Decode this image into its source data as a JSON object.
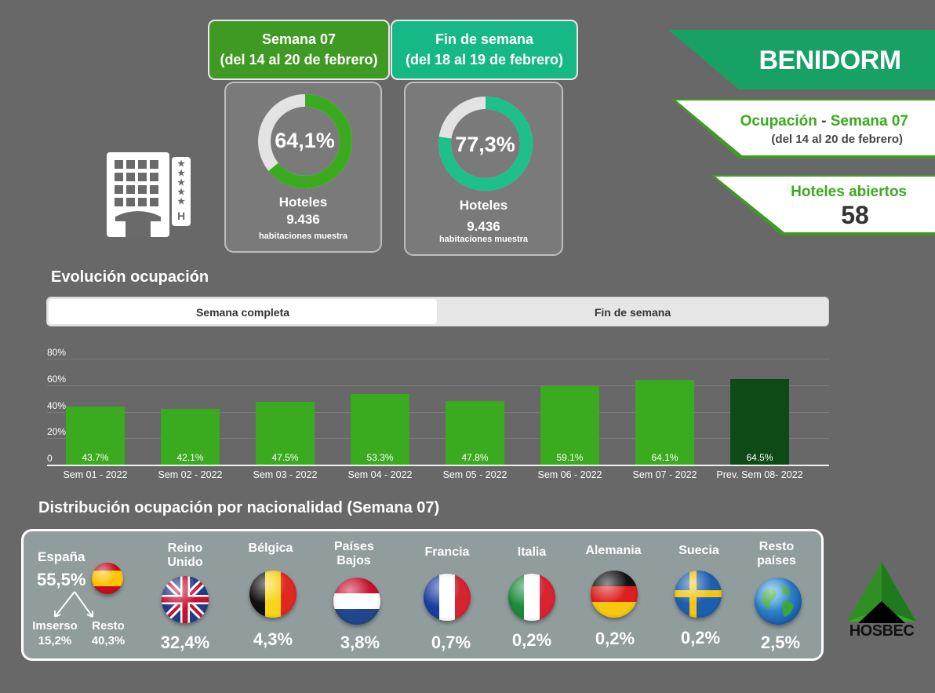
{
  "header": {
    "week_box": {
      "line1": "Semana 07",
      "line2": "(del 14 al 20 de febrero)"
    },
    "weekend_box": {
      "line1": "Fin de semana",
      "line2": "(del 18 al 19 de febrero)"
    }
  },
  "cards": [
    {
      "pct_label": "64,1%",
      "pct_value": 64.1,
      "title": "Hoteles",
      "rooms": "9.436",
      "rooms_label": "habitaciones muestra",
      "color": "#3aaa1e"
    },
    {
      "pct_label": "77,3%",
      "pct_value": 77.3,
      "title": "Hoteles",
      "rooms": "9.436",
      "rooms_label": "habitaciones muestra",
      "color": "#1dbf8a"
    }
  ],
  "right": {
    "city": "BENIDORM",
    "occupancy_word": "Ocupación",
    "dash": "-",
    "occupancy_week": "Semana 07",
    "occupancy_dates": "(del 14 al 20 de febrero)",
    "hotels_open_label": "Hoteles abiertos",
    "hotels_open_value": "58"
  },
  "evolution": {
    "title": "Evolución ocupación",
    "tabs": [
      {
        "label": "Semana completa",
        "active": true
      },
      {
        "label": "Fin de semana",
        "active": false
      }
    ]
  },
  "chart_data": {
    "type": "bar",
    "categories": [
      "Sem 01 - 2022",
      "Sem 02 - 2022",
      "Sem 03 - 2022",
      "Sem 04 - 2022",
      "Sem 05 - 2022",
      "Sem 06 - 2022",
      "Sem 07 - 2022",
      "Prev. Sem 08- 2022"
    ],
    "values": [
      43.7,
      42.1,
      47.5,
      53.3,
      47.8,
      59.1,
      64.1,
      64.5
    ],
    "value_labels": [
      "43.7%",
      "42.1%",
      "47.5%",
      "53.3%",
      "47.8%",
      "59.1%",
      "64.1%",
      "64.5%"
    ],
    "y_ticks": [
      "0",
      "20%",
      "40%",
      "60%",
      "80%"
    ],
    "y_tick_values": [
      0,
      20,
      40,
      60,
      80
    ],
    "ylim": [
      0,
      80
    ],
    "bar_colors": [
      "#3aaa1e",
      "#3aaa1e",
      "#3aaa1e",
      "#3aaa1e",
      "#3aaa1e",
      "#3aaa1e",
      "#3aaa1e",
      "#0d4a16"
    ],
    "grid": true
  },
  "nationality": {
    "title": "Distribución ocupación por nacionalidad (Semana 07)",
    "spain": {
      "name": "España",
      "pct": "55,5%",
      "sub1_name": "Imserso",
      "sub1_pct": "15,2%",
      "sub2_name": "Resto",
      "sub2_pct": "40,3%"
    },
    "countries": [
      {
        "name": "Reino Unido",
        "pct": "32,4%",
        "flag": "uk-flag-icon"
      },
      {
        "name": "Bélgica",
        "pct": "4,3%",
        "flag": "belgium-flag-icon"
      },
      {
        "name": "Países Bajos",
        "pct": "3,8%",
        "flag": "netherlands-flag-icon"
      },
      {
        "name": "Francia",
        "pct": "0,7%",
        "flag": "france-flag-icon"
      },
      {
        "name": "Italia",
        "pct": "0,2%",
        "flag": "italy-flag-icon"
      },
      {
        "name": "Alemania",
        "pct": "0,2%",
        "flag": "germany-flag-icon"
      },
      {
        "name": "Suecia",
        "pct": "0,2%",
        "flag": "sweden-flag-icon"
      },
      {
        "name": "Resto países",
        "pct": "2,5%",
        "flag": "globe-icon"
      }
    ]
  },
  "logo": {
    "text": "HOSBEC"
  }
}
